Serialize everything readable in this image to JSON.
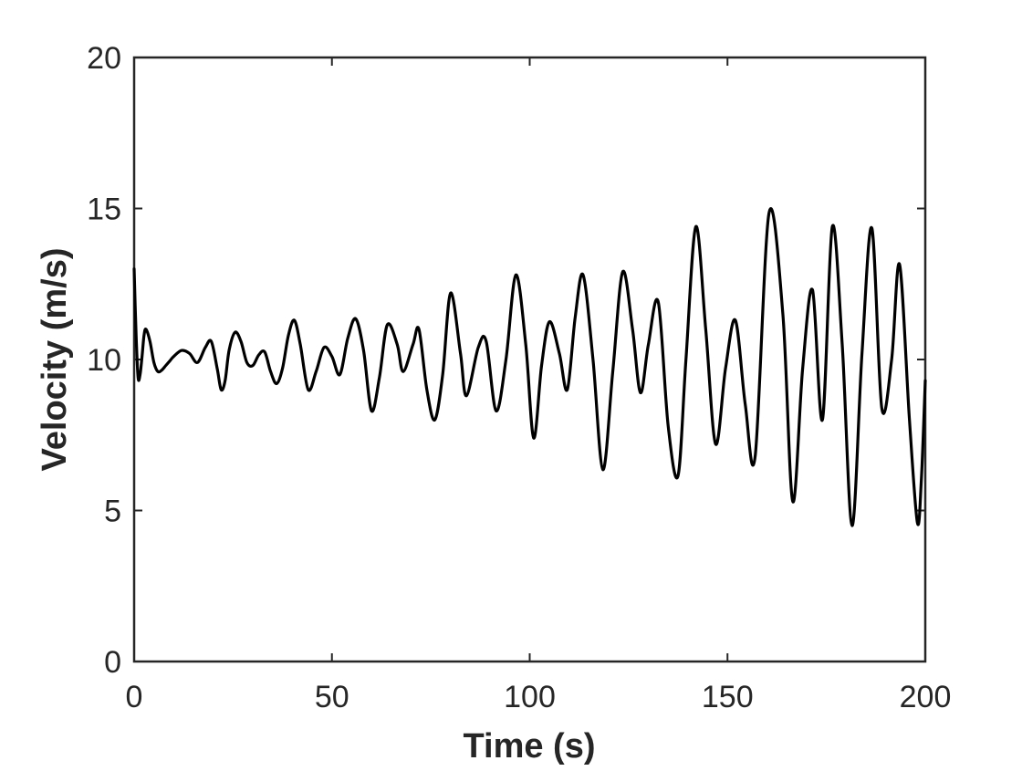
{
  "chart_data": {
    "type": "line",
    "title": "",
    "xlabel": "Time (s)",
    "ylabel": "Velocity (m/s)",
    "xlim": [
      0,
      200
    ],
    "ylim": [
      0,
      20
    ],
    "xticks": [
      0,
      50,
      100,
      150,
      200
    ],
    "yticks": [
      0,
      5,
      10,
      15,
      20
    ],
    "grid": false,
    "legend": "none",
    "line_color": "#000000",
    "series": [
      {
        "x": [
          0,
          0.5,
          1,
          1.5,
          2,
          2.5,
          3,
          4,
          5,
          6,
          7,
          8,
          9,
          10,
          12,
          14,
          16,
          18,
          19.5,
          21,
          22,
          23,
          24,
          25.5,
          27,
          28.5,
          30,
          31.5,
          33,
          34.5,
          36,
          37.5,
          39,
          40.5,
          42,
          44,
          46,
          48,
          50,
          52,
          54,
          56,
          58,
          60,
          62,
          64,
          66.5,
          68,
          70.5,
          72,
          74,
          76,
          78,
          80,
          82.5,
          84,
          87,
          89,
          91.5,
          94,
          96.5,
          99,
          101,
          103,
          105,
          107.5,
          109.5,
          111.5,
          113.5,
          116,
          118.5,
          121,
          123.5,
          126,
          128,
          130,
          132.5,
          135,
          137.5,
          139.5,
          142,
          144.5,
          147,
          149.5,
          152,
          154.5,
          157,
          160.5,
          164,
          166.5,
          169,
          171.5,
          174,
          176.5,
          179,
          181.5,
          184,
          186.5,
          189,
          191.5,
          193.5,
          196,
          198,
          199,
          200
        ],
        "y": [
          13.0,
          10.8,
          9.4,
          9.5,
          10.1,
          10.8,
          11.0,
          10.6,
          9.9,
          9.6,
          9.65,
          9.8,
          9.95,
          10.1,
          10.3,
          10.2,
          9.9,
          10.4,
          10.6,
          9.7,
          9.0,
          9.3,
          10.3,
          10.9,
          10.6,
          9.9,
          9.8,
          10.15,
          10.25,
          9.6,
          9.2,
          9.7,
          10.8,
          11.3,
          10.5,
          9.0,
          9.6,
          10.4,
          10.1,
          9.5,
          10.7,
          11.35,
          10.3,
          8.3,
          9.4,
          11.15,
          10.5,
          9.6,
          10.5,
          11.0,
          9.0,
          8.0,
          9.5,
          12.2,
          10.2,
          8.8,
          10.4,
          10.6,
          8.3,
          10.0,
          12.8,
          10.5,
          7.4,
          9.8,
          11.25,
          10.2,
          9.0,
          11.4,
          12.8,
          10.0,
          6.35,
          9.6,
          12.9,
          11.0,
          8.9,
          10.5,
          11.9,
          7.8,
          6.15,
          10.0,
          14.4,
          11.0,
          7.2,
          9.7,
          11.3,
          8.5,
          6.8,
          14.85,
          11.5,
          5.3,
          9.7,
          12.3,
          8.0,
          14.4,
          10.5,
          4.5,
          10.2,
          14.35,
          8.4,
          10.0,
          13.15,
          8.0,
          4.6,
          6.0,
          9.3
        ]
      }
    ]
  }
}
